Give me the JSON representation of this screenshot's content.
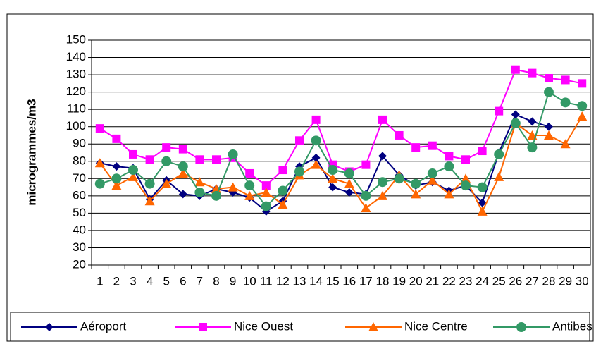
{
  "chart_data": {
    "type": "line",
    "y_label": "microgrammes/m3",
    "categories": [
      "1",
      "2",
      "3",
      "4",
      "5",
      "6",
      "7",
      "8",
      "9",
      "10",
      "11",
      "12",
      "13",
      "14",
      "15",
      "16",
      "17",
      "18",
      "19",
      "20",
      "21",
      "22",
      "23",
      "24",
      "25",
      "26",
      "27",
      "28",
      "29",
      "30"
    ],
    "series": [
      {
        "name": "Aéroport",
        "color": "#000080",
        "marker": "diamond",
        "values": [
          79,
          77,
          76,
          58,
          69,
          61,
          60,
          64,
          62,
          59,
          51,
          57,
          77,
          82,
          65,
          62,
          61,
          83,
          72,
          66,
          68,
          63,
          66,
          56,
          85,
          107,
          103,
          100,
          null,
          null
        ]
      },
      {
        "name": "Nice Ouest",
        "color": "#ff00ff",
        "marker": "square",
        "values": [
          99,
          93,
          84,
          81,
          88,
          87,
          81,
          81,
          82,
          73,
          66,
          75,
          92,
          104,
          78,
          74,
          78,
          104,
          95,
          88,
          89,
          83,
          81,
          86,
          109,
          133,
          131,
          128,
          127,
          125
        ]
      },
      {
        "name": "Nice Centre",
        "color": "#ff6600",
        "marker": "triangle",
        "values": [
          79,
          66,
          71,
          57,
          67,
          73,
          68,
          64,
          65,
          60,
          62,
          55,
          72,
          78,
          70,
          67,
          53,
          60,
          72,
          61,
          69,
          61,
          70,
          51,
          71,
          102,
          95,
          95,
          90,
          106
        ]
      },
      {
        "name": "Antibes",
        "color": "#339966",
        "marker": "circle",
        "values": [
          67,
          70,
          75,
          67,
          80,
          77,
          62,
          60,
          84,
          66,
          54,
          63,
          74,
          92,
          75,
          73,
          60,
          68,
          70,
          67,
          73,
          77,
          66,
          65,
          84,
          102,
          88,
          120,
          114,
          112
        ]
      }
    ],
    "ylim": [
      20,
      150
    ],
    "yticks": [
      20,
      30,
      40,
      50,
      60,
      70,
      80,
      90,
      100,
      110,
      120,
      130,
      140,
      150
    ],
    "grid": true,
    "legend": "bottom"
  }
}
